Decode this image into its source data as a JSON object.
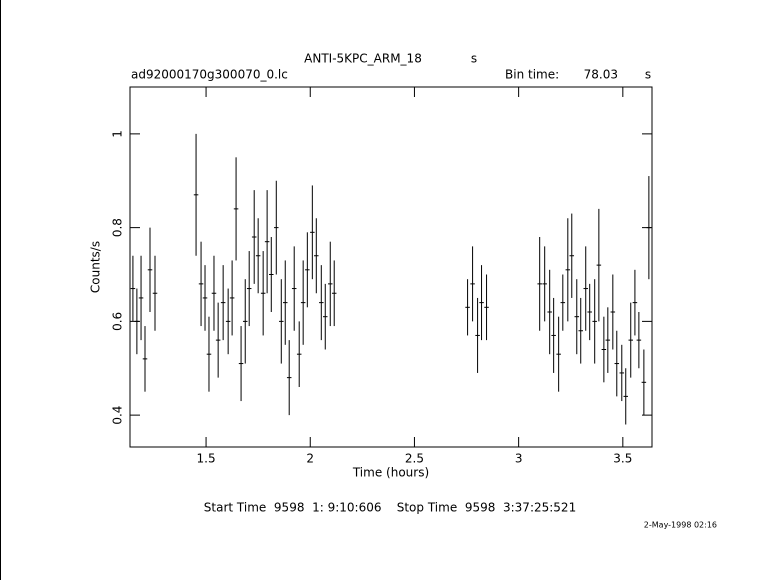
{
  "chart_data": {
    "type": "errorbar",
    "title": "ANTI-5KPC_ARM_18",
    "title_unit": "s",
    "subtitle": "ad92000170g300070_0.lc",
    "bin_time_label": "Bin time:",
    "bin_time": 78.03,
    "bin_time_unit": "s",
    "x_label": "Time (hours)",
    "y_label": "Counts/s",
    "footer": "Start Time  9598  1: 9:10:606    Stop Time  9598  3:37:25:521",
    "date": "2-May-1998 02:16",
    "xlim": [
      1.135,
      3.64
    ],
    "ylim": [
      0.332,
      1.1
    ],
    "xticks": [
      1.5,
      2,
      2.5,
      3,
      3.5
    ],
    "yticks": [
      0.4,
      0.6,
      0.8,
      1
    ],
    "color": "#000000",
    "x": [
      1.149,
      1.168,
      1.188,
      1.207,
      1.231,
      1.255,
      1.452,
      1.476,
      1.495,
      1.514,
      1.538,
      1.558,
      1.582,
      1.606,
      1.625,
      1.644,
      1.668,
      1.688,
      1.707,
      1.731,
      1.75,
      1.774,
      1.793,
      1.813,
      1.837,
      1.861,
      1.88,
      1.899,
      1.923,
      1.947,
      1.966,
      1.986,
      2.01,
      2.029,
      2.053,
      2.072,
      2.096,
      2.115,
      2.755,
      2.779,
      2.803,
      2.822,
      2.846,
      3.101,
      3.125,
      3.149,
      3.168,
      3.192,
      3.212,
      3.236,
      3.255,
      3.279,
      3.298,
      3.322,
      3.341,
      3.365,
      3.385,
      3.409,
      3.428,
      3.452,
      3.471,
      3.495,
      3.514,
      3.538,
      3.558,
      3.577,
      3.601,
      3.625
    ],
    "values": [
      0.67,
      0.6,
      0.65,
      0.52,
      0.71,
      0.66,
      0.87,
      0.68,
      0.65,
      0.53,
      0.66,
      0.56,
      0.64,
      0.6,
      0.65,
      0.84,
      0.51,
      0.6,
      0.67,
      0.78,
      0.74,
      0.66,
      0.77,
      0.7,
      0.8,
      0.6,
      0.64,
      0.48,
      0.67,
      0.53,
      0.64,
      0.71,
      0.79,
      0.74,
      0.64,
      0.61,
      0.68,
      0.66,
      0.63,
      0.68,
      0.57,
      0.64,
      0.63,
      0.68,
      0.68,
      0.62,
      0.57,
      0.53,
      0.64,
      0.71,
      0.74,
      0.61,
      0.58,
      0.67,
      0.62,
      0.6,
      0.72,
      0.54,
      0.56,
      0.62,
      0.51,
      0.49,
      0.44,
      0.56,
      0.64,
      0.56,
      0.47,
      0.8
    ],
    "errors": [
      0.07,
      0.07,
      0.09,
      0.07,
      0.09,
      0.08,
      0.13,
      0.09,
      0.07,
      0.08,
      0.08,
      0.08,
      0.08,
      0.07,
      0.08,
      0.11,
      0.08,
      0.09,
      0.08,
      0.1,
      0.08,
      0.09,
      0.11,
      0.08,
      0.1,
      0.09,
      0.09,
      0.08,
      0.09,
      0.07,
      0.09,
      0.08,
      0.1,
      0.08,
      0.08,
      0.07,
      0.09,
      0.07,
      0.06,
      0.08,
      0.08,
      0.08,
      0.07,
      0.1,
      0.08,
      0.09,
      0.08,
      0.08,
      0.06,
      0.11,
      0.09,
      0.08,
      0.07,
      0.09,
      0.06,
      0.09,
      0.12,
      0.07,
      0.07,
      0.08,
      0.07,
      0.06,
      0.06,
      0.08,
      0.07,
      0.06,
      0.07,
      0.11
    ]
  }
}
